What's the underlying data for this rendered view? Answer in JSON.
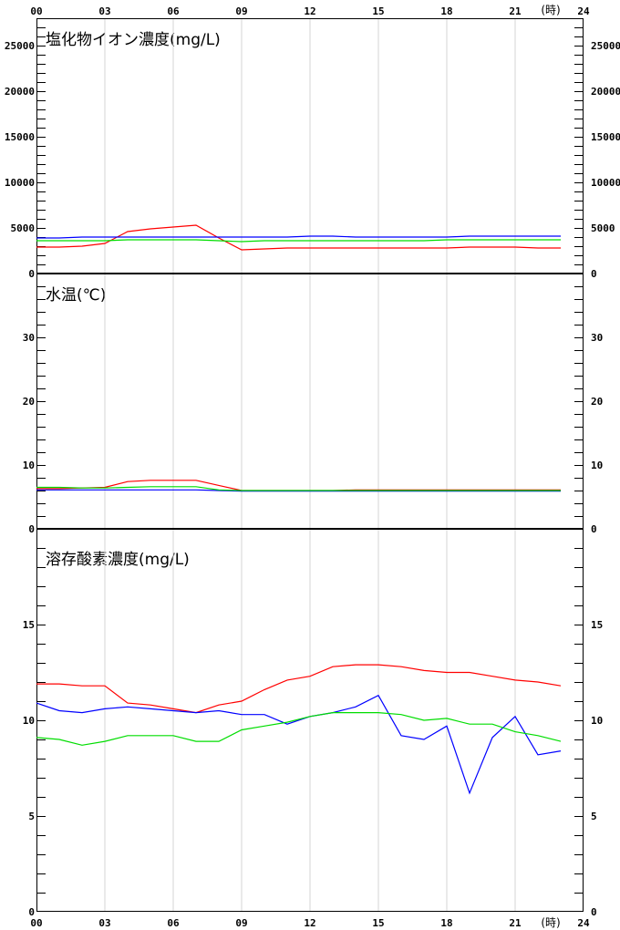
{
  "x_axis": {
    "ticks": [
      "00",
      "03",
      "06",
      "09",
      "12",
      "15",
      "18",
      "21",
      "24"
    ],
    "unit": "(時)"
  },
  "chart_data": [
    {
      "type": "line",
      "title": "塩化物イオン濃度(mg/L)",
      "ylim": [
        0,
        28000
      ],
      "yticks": [
        0,
        5000,
        10000,
        15000,
        20000,
        25000
      ],
      "series": [
        {
          "color": "#ff0000",
          "x": [
            0,
            1,
            2,
            3,
            4,
            5,
            6,
            7,
            8,
            9,
            10,
            11,
            12,
            13,
            14,
            15,
            16,
            17,
            18,
            19,
            20,
            21,
            22,
            23
          ],
          "values": [
            2900,
            2900,
            3000,
            3300,
            4600,
            4900,
            5100,
            5300,
            3900,
            2600,
            2700,
            2800,
            2800,
            2800,
            2800,
            2800,
            2800,
            2800,
            2800,
            2900,
            2900,
            2900,
            2800,
            2800
          ]
        },
        {
          "color": "#0000ff",
          "x": [
            0,
            1,
            2,
            3,
            4,
            5,
            6,
            7,
            8,
            9,
            10,
            11,
            12,
            13,
            14,
            15,
            16,
            17,
            18,
            19,
            20,
            21,
            22,
            23
          ],
          "values": [
            3900,
            3900,
            4000,
            4000,
            4000,
            4000,
            4000,
            4000,
            4000,
            4000,
            4000,
            4000,
            4100,
            4100,
            4000,
            4000,
            4000,
            4000,
            4000,
            4100,
            4100,
            4100,
            4100,
            4100
          ]
        },
        {
          "color": "#00dd00",
          "x": [
            0,
            1,
            2,
            3,
            4,
            5,
            6,
            7,
            8,
            9,
            10,
            11,
            12,
            13,
            14,
            15,
            16,
            17,
            18,
            19,
            20,
            21,
            22,
            23
          ],
          "values": [
            3600,
            3600,
            3600,
            3600,
            3700,
            3700,
            3700,
            3700,
            3600,
            3500,
            3600,
            3600,
            3600,
            3600,
            3600,
            3600,
            3600,
            3600,
            3700,
            3700,
            3700,
            3700,
            3700,
            3700
          ]
        }
      ]
    },
    {
      "type": "line",
      "title": "水温(℃)",
      "ylim": [
        0,
        40
      ],
      "yticks": [
        0,
        10,
        20,
        30
      ],
      "series": [
        {
          "color": "#ff0000",
          "x": [
            0,
            1,
            2,
            3,
            4,
            5,
            6,
            7,
            8,
            9,
            10,
            11,
            12,
            13,
            14,
            15,
            16,
            17,
            18,
            19,
            20,
            21,
            22,
            23
          ],
          "values": [
            6.3,
            6.3,
            6.4,
            6.5,
            7.4,
            7.6,
            7.6,
            7.6,
            6.8,
            6.0,
            6.0,
            6.0,
            6.0,
            6.0,
            6.1,
            6.1,
            6.1,
            6.1,
            6.1,
            6.1,
            6.1,
            6.1,
            6.1,
            6.1
          ]
        },
        {
          "color": "#0000ff",
          "x": [
            0,
            1,
            2,
            3,
            4,
            5,
            6,
            7,
            8,
            9,
            10,
            11,
            12,
            13,
            14,
            15,
            16,
            17,
            18,
            19,
            20,
            21,
            22,
            23
          ],
          "values": [
            6.1,
            6.1,
            6.1,
            6.1,
            6.1,
            6.1,
            6.1,
            6.1,
            6.0,
            5.9,
            5.9,
            5.9,
            5.9,
            5.9,
            5.9,
            5.9,
            5.9,
            5.9,
            5.9,
            5.9,
            5.9,
            5.9,
            5.9,
            5.9
          ]
        },
        {
          "color": "#00dd00",
          "x": [
            0,
            1,
            2,
            3,
            4,
            5,
            6,
            7,
            8,
            9,
            10,
            11,
            12,
            13,
            14,
            15,
            16,
            17,
            18,
            19,
            20,
            21,
            22,
            23
          ],
          "values": [
            6.5,
            6.5,
            6.4,
            6.4,
            6.5,
            6.6,
            6.6,
            6.6,
            6.1,
            6.0,
            6.0,
            6.0,
            6.0,
            6.0,
            6.0,
            6.0,
            6.0,
            6.0,
            6.0,
            6.0,
            6.0,
            6.0,
            6.0,
            6.0
          ]
        }
      ]
    },
    {
      "type": "line",
      "title": "溶存酸素濃度(mg/L)",
      "ylim": [
        0,
        20
      ],
      "yticks": [
        0,
        5,
        10,
        15
      ],
      "series": [
        {
          "color": "#ff0000",
          "x": [
            0,
            1,
            2,
            3,
            4,
            5,
            6,
            7,
            8,
            9,
            10,
            11,
            12,
            13,
            14,
            15,
            16,
            17,
            18,
            19,
            20,
            21,
            22,
            23
          ],
          "values": [
            11.9,
            11.9,
            11.8,
            11.8,
            10.9,
            10.8,
            10.6,
            10.4,
            10.8,
            11.0,
            11.6,
            12.1,
            12.3,
            12.8,
            12.9,
            12.9,
            12.8,
            12.6,
            12.5,
            12.5,
            12.3,
            12.1,
            12.0,
            11.8
          ]
        },
        {
          "color": "#0000ff",
          "x": [
            0,
            1,
            2,
            3,
            4,
            5,
            6,
            7,
            8,
            9,
            10,
            11,
            12,
            13,
            14,
            15,
            16,
            17,
            18,
            19,
            20,
            21,
            22,
            23
          ],
          "values": [
            10.9,
            10.5,
            10.4,
            10.6,
            10.7,
            10.6,
            10.5,
            10.4,
            10.5,
            10.3,
            10.3,
            9.8,
            10.2,
            10.4,
            10.7,
            11.3,
            9.2,
            9.0,
            9.7,
            6.2,
            9.1,
            10.2,
            8.2,
            8.4
          ]
        },
        {
          "color": "#00dd00",
          "x": [
            0,
            1,
            2,
            3,
            4,
            5,
            6,
            7,
            8,
            9,
            10,
            11,
            12,
            13,
            14,
            15,
            16,
            17,
            18,
            19,
            20,
            21,
            22,
            23
          ],
          "values": [
            9.1,
            9.0,
            8.7,
            8.9,
            9.2,
            9.2,
            9.2,
            8.9,
            8.9,
            9.5,
            9.7,
            9.9,
            10.2,
            10.4,
            10.4,
            10.4,
            10.3,
            10.0,
            10.1,
            9.8,
            9.8,
            9.4,
            9.2,
            8.9
          ]
        }
      ]
    }
  ]
}
